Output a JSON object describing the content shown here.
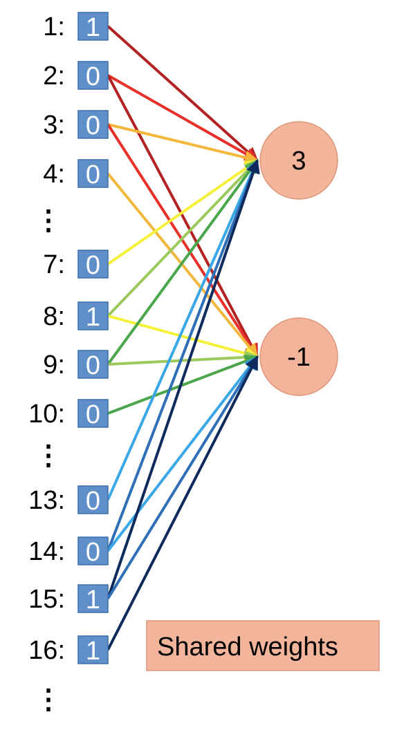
{
  "inputs": [
    {
      "label": "1:",
      "value": "1"
    },
    {
      "label": "2:",
      "value": "0"
    },
    {
      "label": "3:",
      "value": "0"
    },
    {
      "label": "4:",
      "value": "0"
    },
    {
      "label": "7:",
      "value": "0"
    },
    {
      "label": "8:",
      "value": "1"
    },
    {
      "label": "9:",
      "value": "0"
    },
    {
      "label": "10:",
      "value": "0"
    },
    {
      "label": "13:",
      "value": "0"
    },
    {
      "label": "14:",
      "value": "0"
    },
    {
      "label": "15:",
      "value": "1"
    },
    {
      "label": "16:",
      "value": "1"
    }
  ],
  "ellipsis": "⋮",
  "nodes": [
    {
      "value": "3"
    },
    {
      "value": "-1"
    }
  ],
  "legend": {
    "label": "Shared weights"
  },
  "colors": {
    "box": "#5f8fc9",
    "node": "#f2b49b",
    "dark_red": "#b22222",
    "red": "#e8302a",
    "orange": "#f2b83c",
    "yellow": "#f5f03a",
    "light_green": "#9bc95c",
    "green": "#4aa64a",
    "light_blue": "#3aa7e6",
    "blue": "#2e6fb7",
    "navy": "#0f2a5c"
  },
  "connections": [
    {
      "from": 0,
      "to": 0,
      "color": "dark_red"
    },
    {
      "from": 1,
      "to": 0,
      "color": "red"
    },
    {
      "from": 1,
      "to": 1,
      "color": "dark_red"
    },
    {
      "from": 2,
      "to": 0,
      "color": "orange"
    },
    {
      "from": 2,
      "to": 1,
      "color": "red"
    },
    {
      "from": 3,
      "to": 1,
      "color": "orange"
    },
    {
      "from": 4,
      "to": 0,
      "color": "yellow"
    },
    {
      "from": 5,
      "to": 0,
      "color": "light_green"
    },
    {
      "from": 5,
      "to": 1,
      "color": "yellow"
    },
    {
      "from": 6,
      "to": 0,
      "color": "green"
    },
    {
      "from": 6,
      "to": 1,
      "color": "light_green"
    },
    {
      "from": 7,
      "to": 1,
      "color": "green"
    },
    {
      "from": 8,
      "to": 0,
      "color": "light_blue"
    },
    {
      "from": 9,
      "to": 0,
      "color": "blue"
    },
    {
      "from": 9,
      "to": 1,
      "color": "light_blue"
    },
    {
      "from": 10,
      "to": 0,
      "color": "navy"
    },
    {
      "from": 10,
      "to": 1,
      "color": "blue"
    },
    {
      "from": 11,
      "to": 1,
      "color": "navy"
    }
  ]
}
